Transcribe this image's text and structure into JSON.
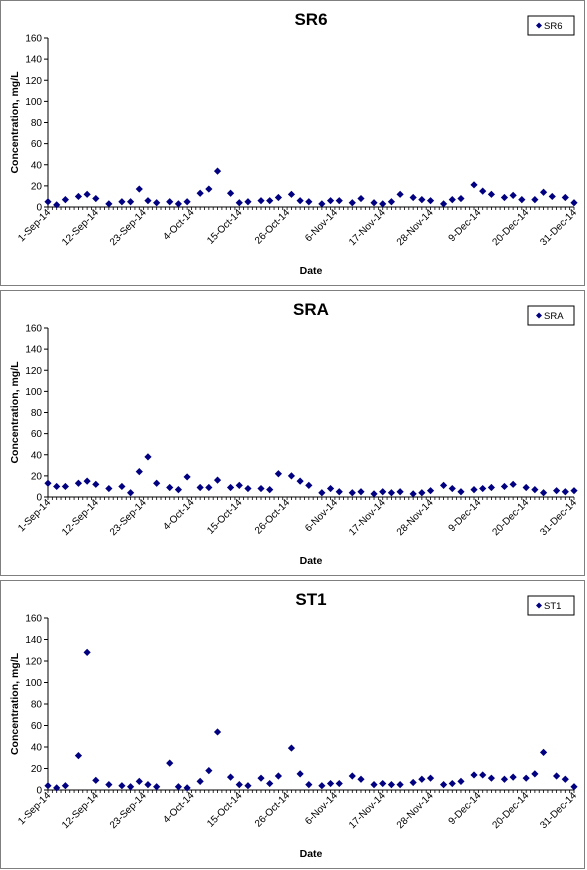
{
  "chart_data": [
    {
      "type": "scatter",
      "title": "SR6",
      "xlabel": "Date",
      "ylabel": "Concentration, mg/L",
      "ylim": [
        0,
        160
      ],
      "yticks": [
        "0",
        "20",
        "40",
        "60",
        "80",
        "100",
        "120",
        "140",
        "160"
      ],
      "xlim": [
        "2014-09-01",
        "2014-12-31"
      ],
      "xtick_labels": [
        "1-Sep-14",
        "12-Sep-14",
        "23-Sep-14",
        "4-Oct-14",
        "15-Oct-14",
        "26-Oct-14",
        "6-Nov-14",
        "17-Nov-14",
        "28-Nov-14",
        "9-Dec-14",
        "20-Dec-14",
        "31-Dec-14"
      ],
      "grid": false,
      "legend": "top-right",
      "marker_color": "#000080",
      "series": [
        {
          "name": "SR6",
          "points": [
            [
              "2014-09-01",
              5
            ],
            [
              "2014-09-03",
              2
            ],
            [
              "2014-09-05",
              7
            ],
            [
              "2014-09-08",
              10
            ],
            [
              "2014-09-10",
              12
            ],
            [
              "2014-09-12",
              8
            ],
            [
              "2014-09-15",
              3
            ],
            [
              "2014-09-18",
              5
            ],
            [
              "2014-09-20",
              5
            ],
            [
              "2014-09-22",
              17
            ],
            [
              "2014-09-24",
              6
            ],
            [
              "2014-09-26",
              4
            ],
            [
              "2014-09-29",
              5
            ],
            [
              "2014-10-01",
              3
            ],
            [
              "2014-10-03",
              5
            ],
            [
              "2014-10-06",
              13
            ],
            [
              "2014-10-08",
              17
            ],
            [
              "2014-10-10",
              34
            ],
            [
              "2014-10-13",
              13
            ],
            [
              "2014-10-15",
              4
            ],
            [
              "2014-10-17",
              5
            ],
            [
              "2014-10-20",
              6
            ],
            [
              "2014-10-22",
              6
            ],
            [
              "2014-10-24",
              9
            ],
            [
              "2014-10-27",
              12
            ],
            [
              "2014-10-29",
              6
            ],
            [
              "2014-10-31",
              5
            ],
            [
              "2014-11-03",
              3
            ],
            [
              "2014-11-05",
              6
            ],
            [
              "2014-11-07",
              6
            ],
            [
              "2014-11-10",
              4
            ],
            [
              "2014-11-12",
              8
            ],
            [
              "2014-11-15",
              4
            ],
            [
              "2014-11-17",
              3
            ],
            [
              "2014-11-19",
              5
            ],
            [
              "2014-11-21",
              12
            ],
            [
              "2014-11-24",
              9
            ],
            [
              "2014-11-26",
              7
            ],
            [
              "2014-11-28",
              6
            ],
            [
              "2014-12-01",
              3
            ],
            [
              "2014-12-03",
              7
            ],
            [
              "2014-12-05",
              8
            ],
            [
              "2014-12-08",
              21
            ],
            [
              "2014-12-10",
              15
            ],
            [
              "2014-12-12",
              12
            ],
            [
              "2014-12-15",
              9
            ],
            [
              "2014-12-17",
              11
            ],
            [
              "2014-12-19",
              7
            ],
            [
              "2014-12-22",
              7
            ],
            [
              "2014-12-24",
              14
            ],
            [
              "2014-12-26",
              10
            ],
            [
              "2014-12-29",
              9
            ],
            [
              "2014-12-31",
              4
            ]
          ]
        }
      ]
    },
    {
      "type": "scatter",
      "title": "SRA",
      "xlabel": "Date",
      "ylabel": "Concentration, mg/L",
      "ylim": [
        0,
        160
      ],
      "yticks": [
        "0",
        "20",
        "40",
        "60",
        "80",
        "100",
        "120",
        "140",
        "160"
      ],
      "xlim": [
        "2014-09-01",
        "2014-12-31"
      ],
      "xtick_labels": [
        "1-Sep-14",
        "12-Sep-14",
        "23-Sep-14",
        "4-Oct-14",
        "15-Oct-14",
        "26-Oct-14",
        "6-Nov-14",
        "17-Nov-14",
        "28-Nov-14",
        "9-Dec-14",
        "20-Dec-14",
        "31-Dec-14"
      ],
      "grid": false,
      "legend": "top-right",
      "marker_color": "#000080",
      "series": [
        {
          "name": "SRA",
          "points": [
            [
              "2014-09-01",
              13
            ],
            [
              "2014-09-03",
              10
            ],
            [
              "2014-09-05",
              10
            ],
            [
              "2014-09-08",
              13
            ],
            [
              "2014-09-10",
              15
            ],
            [
              "2014-09-12",
              12
            ],
            [
              "2014-09-15",
              8
            ],
            [
              "2014-09-18",
              10
            ],
            [
              "2014-09-20",
              4
            ],
            [
              "2014-09-22",
              24
            ],
            [
              "2014-09-24",
              38
            ],
            [
              "2014-09-26",
              13
            ],
            [
              "2014-09-29",
              9
            ],
            [
              "2014-10-01",
              7
            ],
            [
              "2014-10-03",
              19
            ],
            [
              "2014-10-06",
              9
            ],
            [
              "2014-10-08",
              9
            ],
            [
              "2014-10-10",
              16
            ],
            [
              "2014-10-13",
              9
            ],
            [
              "2014-10-15",
              11
            ],
            [
              "2014-10-17",
              8
            ],
            [
              "2014-10-20",
              8
            ],
            [
              "2014-10-22",
              7
            ],
            [
              "2014-10-24",
              22
            ],
            [
              "2014-10-27",
              20
            ],
            [
              "2014-10-29",
              15
            ],
            [
              "2014-10-31",
              11
            ],
            [
              "2014-11-03",
              4
            ],
            [
              "2014-11-05",
              8
            ],
            [
              "2014-11-07",
              5
            ],
            [
              "2014-11-10",
              4
            ],
            [
              "2014-11-12",
              5
            ],
            [
              "2014-11-15",
              3
            ],
            [
              "2014-11-17",
              5
            ],
            [
              "2014-11-19",
              4
            ],
            [
              "2014-11-21",
              5
            ],
            [
              "2014-11-24",
              3
            ],
            [
              "2014-11-26",
              4
            ],
            [
              "2014-11-28",
              6
            ],
            [
              "2014-12-01",
              11
            ],
            [
              "2014-12-03",
              8
            ],
            [
              "2014-12-05",
              5
            ],
            [
              "2014-12-08",
              7
            ],
            [
              "2014-12-10",
              8
            ],
            [
              "2014-12-12",
              9
            ],
            [
              "2014-12-15",
              10
            ],
            [
              "2014-12-17",
              12
            ],
            [
              "2014-12-20",
              9
            ],
            [
              "2014-12-22",
              7
            ],
            [
              "2014-12-24",
              4
            ],
            [
              "2014-12-27",
              6
            ],
            [
              "2014-12-29",
              5
            ],
            [
              "2014-12-31",
              6
            ]
          ]
        }
      ]
    },
    {
      "type": "scatter",
      "title": "ST1",
      "xlabel": "Date",
      "ylabel": "Concentration, mg/L",
      "ylim": [
        0,
        160
      ],
      "yticks": [
        "0",
        "20",
        "40",
        "60",
        "80",
        "100",
        "120",
        "140",
        "160"
      ],
      "xlim": [
        "2014-09-01",
        "2014-12-31"
      ],
      "xtick_labels": [
        "1-Sep-14",
        "12-Sep-14",
        "23-Sep-14",
        "4-Oct-14",
        "15-Oct-14",
        "26-Oct-14",
        "6-Nov-14",
        "17-Nov-14",
        "28-Nov-14",
        "9-Dec-14",
        "20-Dec-14",
        "31-Dec-14"
      ],
      "grid": false,
      "legend": "top-right",
      "marker_color": "#000080",
      "series": [
        {
          "name": "ST1",
          "points": [
            [
              "2014-09-01",
              4
            ],
            [
              "2014-09-03",
              2
            ],
            [
              "2014-09-05",
              4
            ],
            [
              "2014-09-08",
              32
            ],
            [
              "2014-09-10",
              128
            ],
            [
              "2014-09-12",
              9
            ],
            [
              "2014-09-15",
              5
            ],
            [
              "2014-09-18",
              4
            ],
            [
              "2014-09-20",
              3
            ],
            [
              "2014-09-22",
              8
            ],
            [
              "2014-09-24",
              5
            ],
            [
              "2014-09-26",
              3
            ],
            [
              "2014-09-29",
              25
            ],
            [
              "2014-10-01",
              3
            ],
            [
              "2014-10-03",
              2
            ],
            [
              "2014-10-06",
              8
            ],
            [
              "2014-10-08",
              18
            ],
            [
              "2014-10-10",
              54
            ],
            [
              "2014-10-13",
              12
            ],
            [
              "2014-10-15",
              5
            ],
            [
              "2014-10-17",
              4
            ],
            [
              "2014-10-20",
              11
            ],
            [
              "2014-10-22",
              6
            ],
            [
              "2014-10-24",
              13
            ],
            [
              "2014-10-27",
              39
            ],
            [
              "2014-10-29",
              15
            ],
            [
              "2014-10-31",
              5
            ],
            [
              "2014-11-03",
              4
            ],
            [
              "2014-11-05",
              6
            ],
            [
              "2014-11-07",
              6
            ],
            [
              "2014-11-10",
              13
            ],
            [
              "2014-11-12",
              10
            ],
            [
              "2014-11-15",
              5
            ],
            [
              "2014-11-17",
              6
            ],
            [
              "2014-11-19",
              5
            ],
            [
              "2014-11-21",
              5
            ],
            [
              "2014-11-24",
              7
            ],
            [
              "2014-11-26",
              10
            ],
            [
              "2014-11-28",
              11
            ],
            [
              "2014-12-01",
              5
            ],
            [
              "2014-12-03",
              6
            ],
            [
              "2014-12-05",
              8
            ],
            [
              "2014-12-08",
              14
            ],
            [
              "2014-12-10",
              14
            ],
            [
              "2014-12-12",
              11
            ],
            [
              "2014-12-15",
              10
            ],
            [
              "2014-12-17",
              12
            ],
            [
              "2014-12-20",
              11
            ],
            [
              "2014-12-22",
              15
            ],
            [
              "2014-12-24",
              35
            ],
            [
              "2014-12-27",
              13
            ],
            [
              "2014-12-29",
              10
            ],
            [
              "2014-12-31",
              3
            ]
          ]
        }
      ]
    }
  ]
}
